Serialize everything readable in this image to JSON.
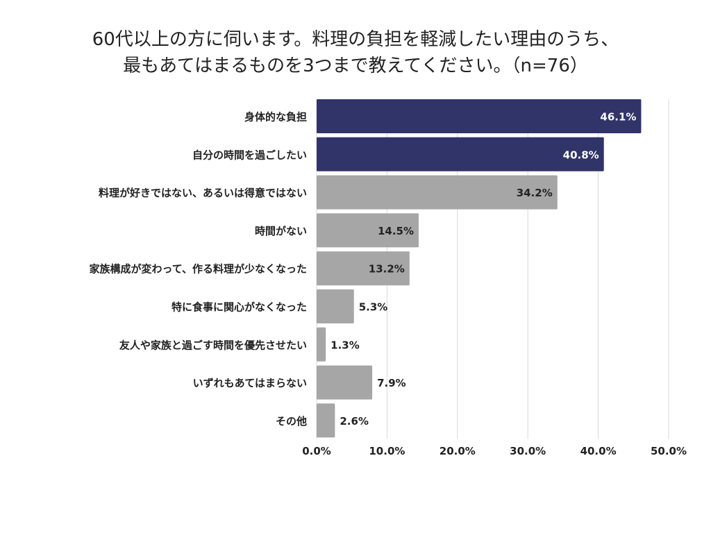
{
  "colors": {
    "highlight": "#303468",
    "default": "#a6a6a6",
    "grid": "#d9d9d9",
    "label_inside_highlight": "#ffffff",
    "label_dark": "#222222"
  },
  "chart_data": {
    "type": "bar",
    "orientation": "horizontal",
    "title_lines": [
      "60代以上の方に伺います。料理の負担を軽減したい理由のうち、",
      "最もあてはまるものを3つまで教えてください。（n=76）"
    ],
    "categories": [
      "身体的な負担",
      "自分の時間を過ごしたい",
      "料理が好きではない、あるいは得意ではない",
      "時間がない",
      "家族構成が変わって、作る料理が少なくなった",
      "特に食事に関心がなくなった",
      "友人や家族と過ごす時間を優先させたい",
      "いずれもあてはまらない",
      "その他"
    ],
    "values": [
      46.1,
      40.8,
      34.2,
      14.5,
      13.2,
      5.3,
      1.3,
      7.9,
      2.6
    ],
    "value_labels": [
      "46.1%",
      "40.8%",
      "34.2%",
      "14.5%",
      "13.2%",
      "5.3%",
      "1.3%",
      "7.9%",
      "2.6%"
    ],
    "highlighted": [
      true,
      true,
      false,
      false,
      false,
      false,
      false,
      false,
      false
    ],
    "xlim": [
      0,
      50
    ],
    "x_ticks": [
      0,
      10,
      20,
      30,
      40,
      50
    ],
    "x_tick_labels": [
      "0.0%",
      "10.0%",
      "20.0%",
      "30.0%",
      "40.0%",
      "50.0%"
    ],
    "grid": true,
    "legend": "none"
  }
}
